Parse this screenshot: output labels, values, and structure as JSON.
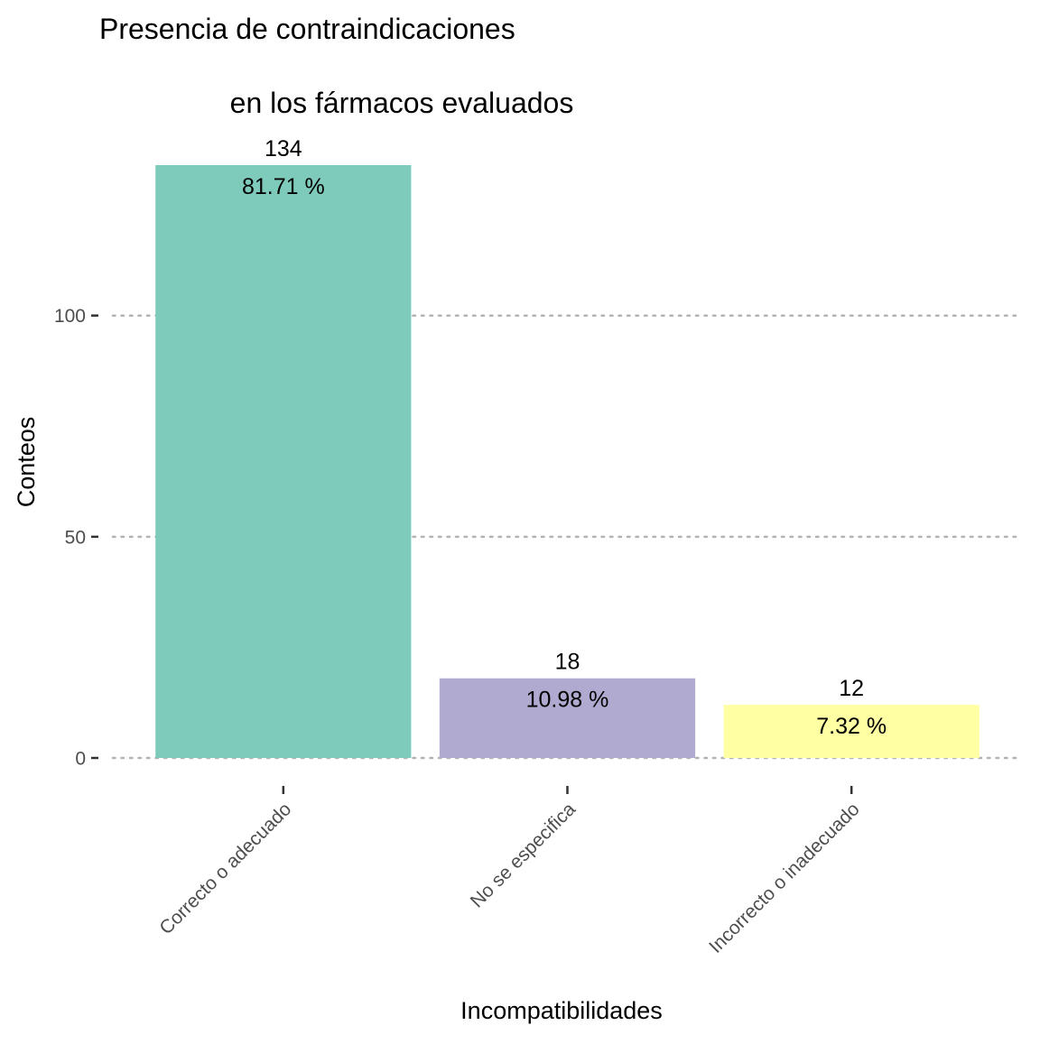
{
  "chart_data": {
    "type": "bar",
    "title_lines": [
      "Presencia de contraindicaciones",
      "en los fármacos evaluados"
    ],
    "xlabel": "Incompatibilidades",
    "ylabel": "Conteos",
    "categories": [
      "Correcto o adecuado",
      "No se especifica",
      "Incorrecto o inadecuado"
    ],
    "values": [
      134,
      18,
      12
    ],
    "percent_labels": [
      "81.71 %",
      "10.98 %",
      "7.32 %"
    ],
    "count_labels": [
      "134",
      "18",
      "12"
    ],
    "colors": [
      "#7fcbbb",
      "#b0aad0",
      "#ffffa3"
    ],
    "yticks": [
      0,
      50,
      100
    ],
    "ytick_labels": [
      "0",
      "50",
      "100"
    ],
    "ylim": [
      0,
      134
    ],
    "grid": "horizontal dotted",
    "legend": "none"
  }
}
